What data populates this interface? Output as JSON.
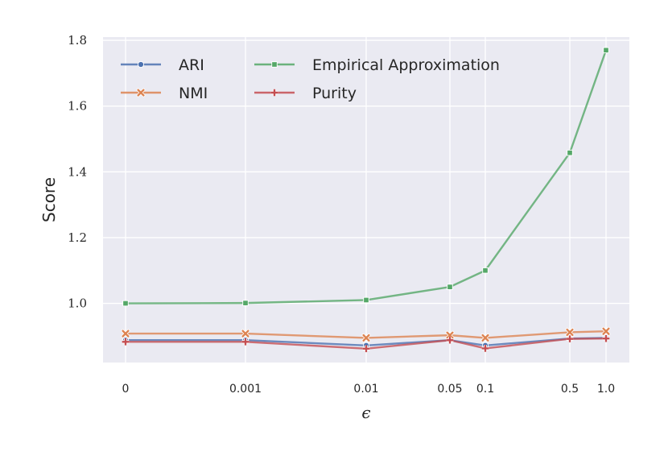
{
  "chart_data": {
    "type": "line",
    "xlabel": "ϵ",
    "ylabel": "Score",
    "x_tick_labels": [
      "0",
      "0.001",
      "0.01",
      "0.05",
      "0.1",
      "0.5",
      "1.0"
    ],
    "y_tick_labels": [
      "1.0",
      "1.2",
      "1.4",
      "1.6",
      "1.8"
    ],
    "y_ticks": [
      1.0,
      1.2,
      1.4,
      1.6,
      1.8
    ],
    "ylim": [
      0.82,
      1.81
    ],
    "grid": true,
    "legend_position": "top-left",
    "series": [
      {
        "name": "ARI",
        "color": "#4C72B0",
        "marker": "circle",
        "values": [
          0.888,
          0.888,
          0.872,
          0.888,
          0.872,
          0.893,
          0.895
        ]
      },
      {
        "name": "NMI",
        "color": "#DD8452",
        "marker": "x",
        "values": [
          0.908,
          0.908,
          0.895,
          0.903,
          0.895,
          0.912,
          0.915
        ]
      },
      {
        "name": "Empirical Approximation",
        "color": "#55A868",
        "marker": "square",
        "values": [
          1.0,
          1.001,
          1.01,
          1.05,
          1.1,
          1.458,
          1.77
        ]
      },
      {
        "name": "Purity",
        "color": "#C44E52",
        "marker": "plus",
        "values": [
          0.883,
          0.883,
          0.862,
          0.888,
          0.863,
          0.892,
          0.893
        ]
      }
    ]
  }
}
